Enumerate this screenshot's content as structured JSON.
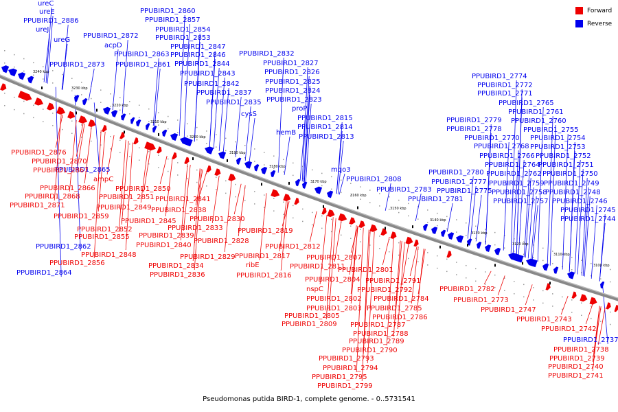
{
  "caption": "Pseudomonas putida BIRD-1, complete genome. - 0..5731541",
  "legend": [
    {
      "label": "Forward",
      "color": "#ee0000"
    },
    {
      "label": "Reverse",
      "color": "#0000ee"
    }
  ],
  "colors": {
    "forward": "#ee0000",
    "reverse": "#0000ee",
    "axis": "#888888"
  },
  "ticks": [
    "3240 kbp",
    "3230 kbp",
    "3220 kbp",
    "3210 kbp",
    "3200 kbp",
    "3190 kbp",
    "3180 kbp",
    "3170 kbp",
    "3160 kbp",
    "3150 kbp",
    "3140 kbp",
    "3130 kbp",
    "3120 kbp",
    "3110 kbp",
    "3100 kbp"
  ],
  "reverse_labels": [
    "ureC",
    "ureE",
    "PPUBIRD1_2886",
    "ureJ",
    "ureG",
    "PPUBIRD1_2872",
    "acpD",
    "PPUBIRD1_2873",
    "PPUBIRD1_2860",
    "PPUBIRD1_2857",
    "PPUBIRD1_2854",
    "PPUBIRD1_2853",
    "PPUBIRD1_2847",
    "PPUBIRD1_2863",
    "PPUBIRD1_2846",
    "PPUBIRD1_2861",
    "PPUBIRD1_2844",
    "PPUBIRD1_2843",
    "PPUBIRD1_2842",
    "PPUBIRD1_2837",
    "PPUBIRD1_2835",
    "PPUBIRD1_2832",
    "PPUBIRD1_2827",
    "PPUBIRD1_2826",
    "PPUBIRD1_2825",
    "PPUBIRD1_2824",
    "PPUBIRD1_2823",
    "proP",
    "cysS",
    "PPUBIRD1_2815",
    "hemB",
    "PPUBIRD1_2814",
    "PPUBIRD1_2813",
    "mqo3",
    "PPUBIRD1_2808",
    "PPUBIRD1_2783",
    "PPUBIRD1_2781",
    "PPUBIRD1_2774",
    "PPUBIRD1_2772",
    "PPUBIRD1_2771",
    "PPUBIRD1_2765",
    "PPUBIRD1_2761",
    "PPUBIRD1_2779",
    "PPUBIRD1_2760",
    "PPUBIRD1_2778",
    "PPUBIRD1_2755",
    "PPUBIRD1_2770",
    "PPUBIRD1_2754",
    "PPUBIRD1_2768",
    "PPUBIRD1_2753",
    "PPUBIRD1_2766",
    "PPUBIRD1_2752",
    "PPUBIRD1_2764",
    "PPUBIRD1_2751",
    "PPUBIRD1_2780",
    "PPUBIRD1_2762",
    "PPUBIRD1_2750",
    "PPUBIRD1_2777",
    "PPUBIRD1_2759",
    "PPUBIRD1_2749",
    "PPUBIRD1_2775",
    "PPUBIRD1_2758",
    "PPUBIRD1_2748",
    "PPUBIRD1_2757",
    "PPUBIRD1_2746",
    "PPUBIRD1_2745",
    "PPUBIRD1_2744",
    "PPUBIRD1_2865",
    "PPUBIRD1_2862",
    "PPUBIRD1_2864",
    "PPUBIRD1_2737"
  ],
  "forward_labels": [
    "PPUBIRD1_2876",
    "PPUBIRD1_2870",
    "PPUBIRD1_2867",
    "ampC",
    "PPUBIRD1_2866",
    "PPUBIRD1_2868",
    "PPUBIRD1_2871",
    "PPUBIRD1_2850",
    "PPUBIRD1_2851",
    "PPUBIRD1_2849",
    "PPUBIRD1_2859",
    "PPUBIRD1_2845",
    "PPUBIRD1_2852",
    "PPUBIRD1_2855",
    "PPUBIRD1_2848",
    "PPUBIRD1_2856",
    "PPUBIRD1_2841",
    "PPUBIRD1_2838",
    "PPUBIRD1_2830",
    "PPUBIRD1_2833",
    "PPUBIRD1_2839",
    "PPUBIRD1_2840",
    "PPUBIRD1_2834",
    "PPUBIRD1_2836",
    "PPUBIRD1_2828",
    "PPUBIRD1_2829",
    "PPUBIRD1_2819",
    "PPUBIRD1_2812",
    "PPUBIRD1_2817",
    "ribE",
    "PPUBIRD1_2816",
    "PPUBIRD1_2811",
    "PPUBIRD1_2807",
    "PPUBIRD1_2801",
    "PPUBIRD1_2804",
    "nspC",
    "PPUBIRD1_2802",
    "PPUBIRD1_2803",
    "PPUBIRD1_2805",
    "PPUBIRD1_2809",
    "PPUBIRD1_2791",
    "PPUBIRD1_2792",
    "PPUBIRD1_2784",
    "PPUBIRD1_2785",
    "PPUBIRD1_2786",
    "PPUBIRD1_2787",
    "PPUBIRD1_2788",
    "PPUBIRD1_2789",
    "PPUBIRD1_2790",
    "PPUBIRD1_2793",
    "PPUBIRD1_2794",
    "PPUBIRD1_2795",
    "PPUBIRD1_2799",
    "PPUBIRD1_2782",
    "PPUBIRD1_2773",
    "PPUBIRD1_2747",
    "PPUBIRD1_2743",
    "PPUBIRD1_2742",
    "PPUBIRD1_2738",
    "PPUBIRD1_2739",
    "PPUBIRD1_2740",
    "PPUBIRD1_2741"
  ]
}
